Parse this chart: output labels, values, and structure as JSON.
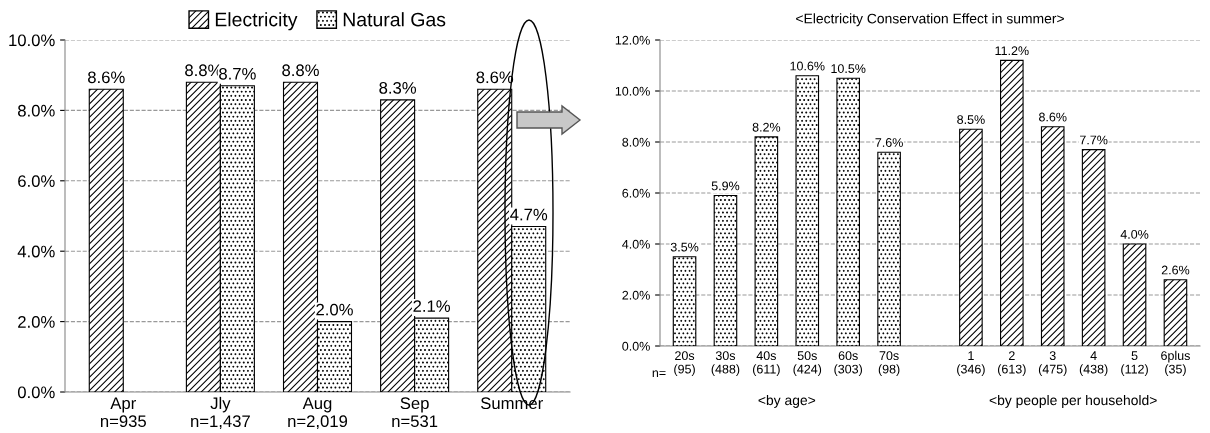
{
  "chart_data": [
    {
      "type": "bar",
      "categories": [
        "Apr\nn=935",
        "Jly\nn=1,437",
        "Aug\nn=2,019",
        "Sep\nn=531",
        "Summer"
      ],
      "series": [
        {
          "name": "Electricity",
          "color": "#000000",
          "values": [
            8.6,
            8.8,
            8.8,
            8.3,
            8.6
          ],
          "value_labels": [
            "8.6%",
            "8.8%",
            "8.8%",
            "8.3%",
            "8.6%"
          ]
        },
        {
          "name": "Natural Gas",
          "color": "#000000",
          "values": [
            null,
            8.7,
            2.0,
            2.1,
            4.7
          ],
          "value_labels": [
            null,
            "8.7%",
            "2.0%",
            "2.1%",
            "4.7%"
          ]
        }
      ],
      "ylim": [
        0,
        10
      ],
      "yticks": [
        {
          "value": 0,
          "label": "0.0%"
        },
        {
          "value": 2,
          "label": "2.0%"
        },
        {
          "value": 4,
          "label": "4.0%"
        },
        {
          "value": 6,
          "label": "6.0%"
        },
        {
          "value": 8,
          "label": "8.0%"
        },
        {
          "value": 10,
          "label": "10.0%"
        }
      ],
      "grid": "y",
      "legend": "top"
    },
    {
      "type": "bar",
      "title": "<Electricity Conservation Effect in summer>",
      "categories": [
        "20s\n(95)",
        "30s\n(488)",
        "40s\n(611)",
        "50s\n(424)",
        "60s\n(303)",
        "70s\n(98)",
        null,
        "1\n(346)",
        "2\n(613)",
        "3\n(475)",
        "4\n(438)",
        "5\n(112)",
        "6plus\n(35)"
      ],
      "series": [
        {
          "color": "#000000",
          "values": [
            3.5,
            5.9,
            8.2,
            10.6,
            10.5,
            7.6,
            null,
            null,
            null,
            null,
            null,
            null,
            null
          ],
          "value_labels": [
            "3.5%",
            "5.9%",
            "8.2%",
            "10.6%",
            "10.5%",
            "7.6%",
            null,
            null,
            null,
            null,
            null,
            null,
            null
          ]
        },
        {
          "color": "#000000",
          "values": [
            null,
            null,
            null,
            null,
            null,
            null,
            null,
            8.5,
            11.2,
            8.6,
            7.7,
            4.0,
            2.6
          ],
          "value_labels": [
            null,
            null,
            null,
            null,
            null,
            null,
            null,
            "8.5%",
            "11.2%",
            "8.6%",
            "7.7%",
            "4.0%",
            "2.6%"
          ]
        }
      ],
      "ylim": [
        0,
        12
      ],
      "yticks": [
        {
          "value": 0,
          "label": "0.0%"
        },
        {
          "value": 2,
          "label": "2.0%"
        },
        {
          "value": 4,
          "label": "4.0%"
        },
        {
          "value": 6,
          "label": "6.0%"
        },
        {
          "value": 8,
          "label": "8.0%"
        },
        {
          "value": 10,
          "label": "10.0%"
        },
        {
          "value": 12,
          "label": "12.0%"
        }
      ],
      "grid": "y",
      "annotations": [
        "n=",
        "<by age>",
        "<by people per household>"
      ]
    }
  ]
}
